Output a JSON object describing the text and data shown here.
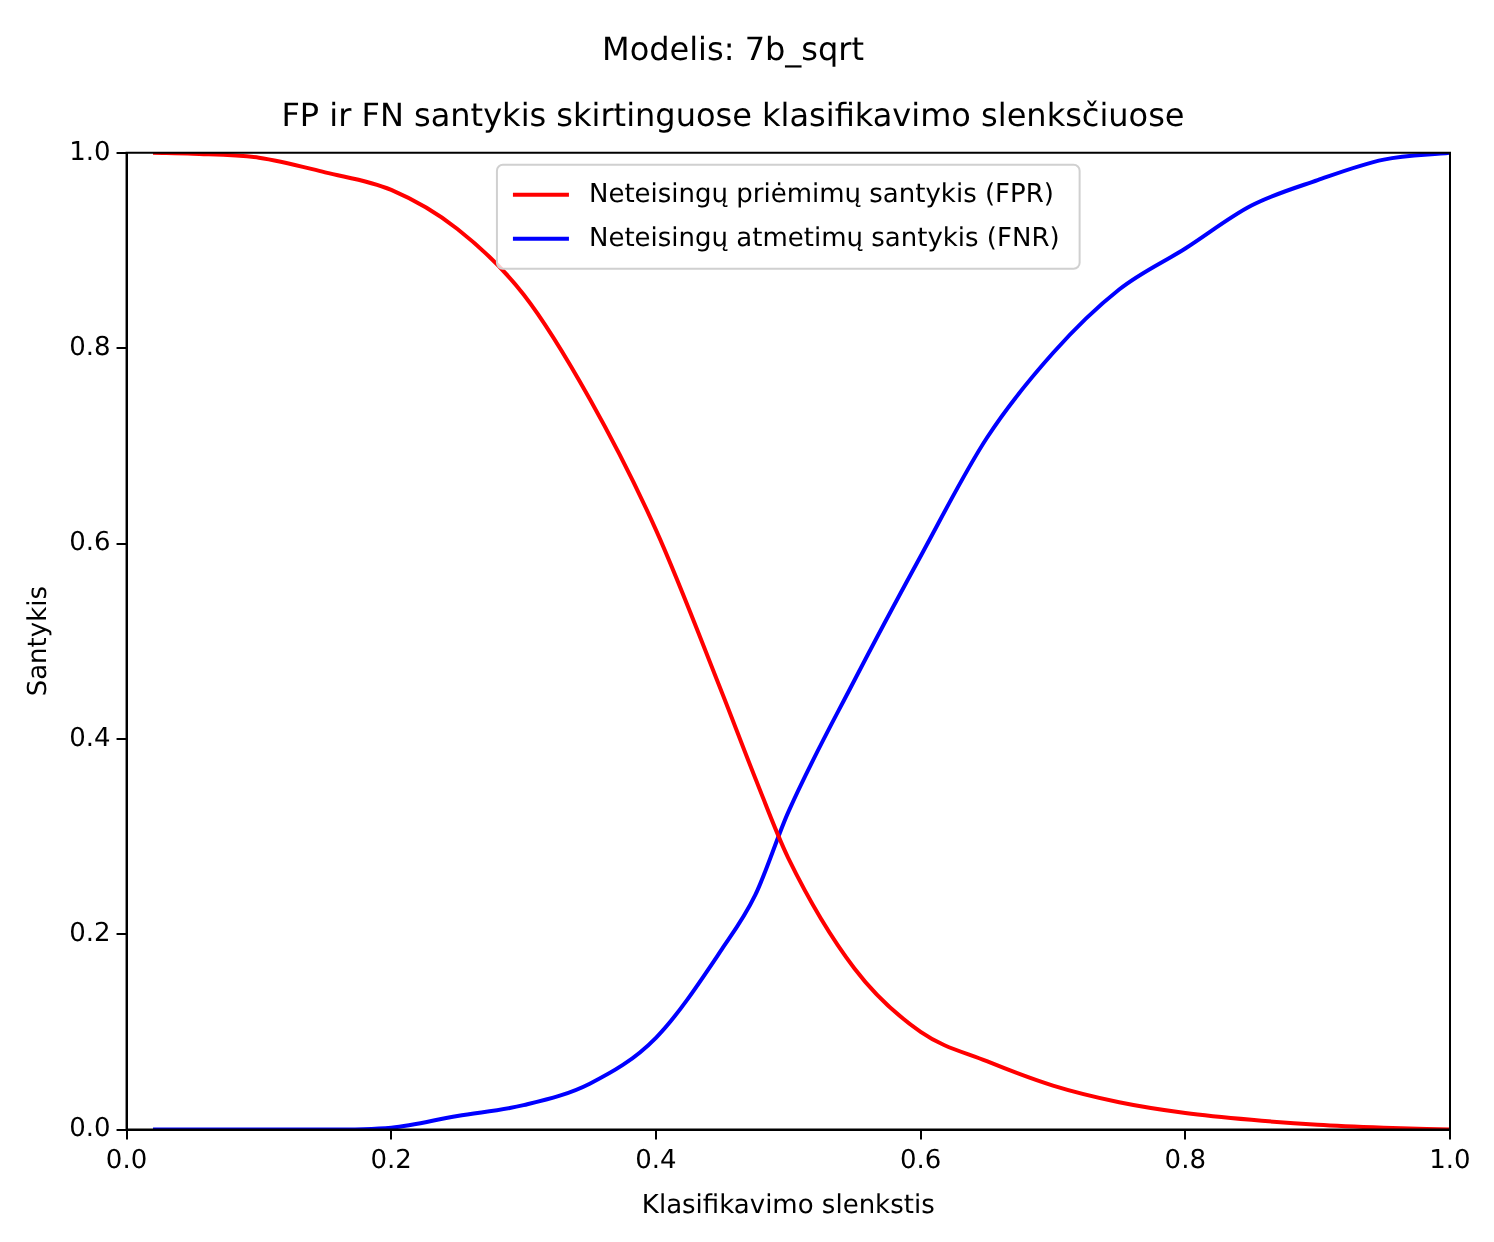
{
  "chart_data": {
    "type": "line",
    "title": "Modelis: 7b_sqrt",
    "subtitle": "FP ir FN santykis skirtinguose klasifikavimo slenksčiuose",
    "xlabel": "Klasifikavimo slenkstis",
    "ylabel": "Santykis",
    "x": [
      0.02,
      0.05,
      0.1,
      0.15,
      0.2,
      0.25,
      0.3,
      0.35,
      0.4,
      0.45,
      0.475,
      0.5,
      0.55,
      0.6,
      0.65,
      0.7,
      0.75,
      0.8,
      0.85,
      0.9,
      0.95,
      1.0
    ],
    "series": [
      {
        "name": "Neteisingų priėmimų santykis (FPR)",
        "color": "#ff0000",
        "values": [
          1.0,
          0.999,
          0.995,
          0.98,
          0.962,
          0.922,
          0.855,
          0.748,
          0.614,
          0.447,
          0.36,
          0.278,
          0.165,
          0.1,
          0.07,
          0.045,
          0.028,
          0.017,
          0.01,
          0.005,
          0.002,
          0.0
        ]
      },
      {
        "name": "Neteisingų atmetimų santykis (FNR)",
        "color": "#0000ff",
        "values": [
          0.0,
          0.0,
          0.0,
          0.0,
          0.002,
          0.014,
          0.025,
          0.047,
          0.094,
          0.185,
          0.24,
          0.325,
          0.46,
          0.587,
          0.708,
          0.795,
          0.86,
          0.902,
          0.946,
          0.972,
          0.993,
          1.0
        ]
      }
    ],
    "xlim": [
      0,
      1
    ],
    "ylim": [
      0,
      1
    ],
    "xticks": [
      {
        "value": 0,
        "label": "0.0"
      },
      {
        "value": 0.2,
        "label": "0.2"
      },
      {
        "value": 0.4,
        "label": "0.4"
      },
      {
        "value": 0.6,
        "label": "0.6"
      },
      {
        "value": 0.8,
        "label": "0.8"
      },
      {
        "value": 1,
        "label": "1.0"
      }
    ],
    "yticks": [
      {
        "value": 0,
        "label": "0.0"
      },
      {
        "value": 0.2,
        "label": "0.2"
      },
      {
        "value": 0.4,
        "label": "0.4"
      },
      {
        "value": 0.6,
        "label": "0.6"
      },
      {
        "value": 0.8,
        "label": "0.8"
      },
      {
        "value": 1,
        "label": "1.0"
      }
    ],
    "legend": "top",
    "grid": false,
    "marker": "none",
    "line_style": "solid"
  }
}
